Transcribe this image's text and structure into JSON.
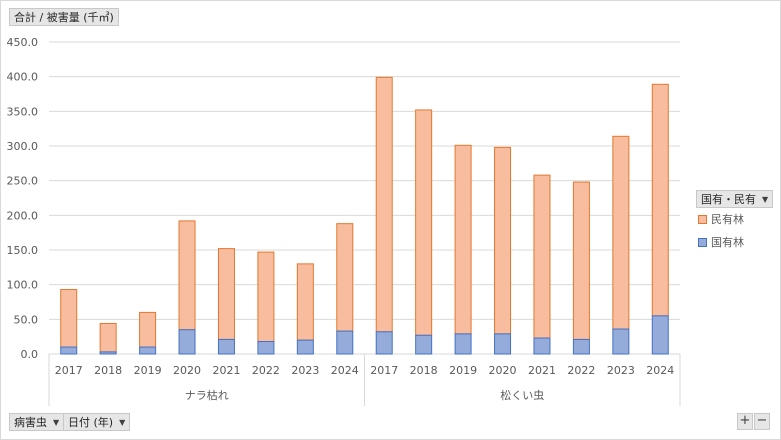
{
  "value_field": {
    "label": "合計 / 被害量 (千㎥)"
  },
  "legend_filter": {
    "label": "国有・民有"
  },
  "category_field": {
    "label": "病害虫"
  },
  "date_field": {
    "label": "日付 (年)"
  },
  "zoom": {
    "in": "+",
    "out": "−"
  },
  "colors": {
    "private_fill": "#f8bd9f",
    "private_stroke": "#e3782e",
    "national_fill": "#95acdb",
    "national_stroke": "#4472c4",
    "grid": "#d9d9d9",
    "axis_text": "#595959"
  },
  "chart_data": {
    "type": "bar",
    "stacked": true,
    "ylim": [
      0,
      450
    ],
    "yticks": [
      "0.0",
      "50.0",
      "100.0",
      "150.0",
      "200.0",
      "250.0",
      "300.0",
      "350.0",
      "400.0",
      "450.0"
    ],
    "grid": true,
    "legend_position": "right",
    "groups": [
      {
        "name": "ナラ枯れ",
        "years": [
          "2017",
          "2018",
          "2019",
          "2020",
          "2021",
          "2022",
          "2023",
          "2024"
        ]
      },
      {
        "name": "松くい虫",
        "years": [
          "2017",
          "2018",
          "2019",
          "2020",
          "2021",
          "2022",
          "2023",
          "2024"
        ]
      }
    ],
    "series": [
      {
        "name": "国有林",
        "values": [
          10,
          3,
          10,
          35,
          21,
          18,
          20,
          33,
          32,
          27,
          29,
          29,
          23,
          21,
          36,
          55
        ]
      },
      {
        "name": "民有林",
        "values": [
          83,
          41,
          50,
          157,
          131,
          129,
          110,
          155,
          367,
          325,
          272,
          269,
          235,
          227,
          278,
          334
        ]
      }
    ]
  }
}
